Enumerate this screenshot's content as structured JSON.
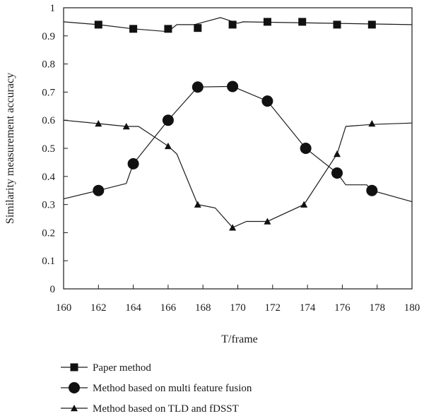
{
  "chart_data": {
    "type": "line",
    "xlabel": "T/frame",
    "ylabel": "Similarity measurement accuracy",
    "xlim": [
      160,
      180
    ],
    "ylim": [
      0,
      1
    ],
    "x_ticks": [
      "160",
      "162",
      "164",
      "166",
      "168",
      "170",
      "172",
      "174",
      "176",
      "178",
      "180"
    ],
    "y_ticks": [
      "0",
      "0.1",
      "0.2",
      "0.3",
      "0.4",
      "0.5",
      "0.6",
      "0.7",
      "0.8",
      "0.9",
      "1"
    ],
    "grid": false,
    "legend_position": "bottom",
    "series": [
      {
        "name": "Paper method",
        "marker": "square",
        "line": [
          [
            160,
            0.95
          ],
          [
            162,
            0.94
          ],
          [
            164,
            0.925
          ],
          [
            166,
            0.915
          ],
          [
            166.5,
            0.94
          ],
          [
            167.5,
            0.94
          ],
          [
            169,
            0.965
          ],
          [
            170,
            0.945
          ],
          [
            170.3,
            0.95
          ],
          [
            180,
            0.94
          ]
        ],
        "markers": [
          [
            162,
            0.94
          ],
          [
            164,
            0.925
          ],
          [
            166,
            0.925
          ],
          [
            167.7,
            0.928
          ],
          [
            169.7,
            0.94
          ],
          [
            171.7,
            0.95
          ],
          [
            173.7,
            0.95
          ],
          [
            175.7,
            0.94
          ],
          [
            177.7,
            0.94
          ]
        ]
      },
      {
        "name": "Method based on multi feature fusion",
        "marker": "circle",
        "line": [
          [
            160,
            0.32
          ],
          [
            162,
            0.35
          ],
          [
            163.6,
            0.375
          ],
          [
            164,
            0.445
          ],
          [
            166,
            0.6
          ],
          [
            167.7,
            0.718
          ],
          [
            169.7,
            0.72
          ],
          [
            171.7,
            0.668
          ],
          [
            173.9,
            0.5
          ],
          [
            175.7,
            0.412
          ],
          [
            176.2,
            0.37
          ],
          [
            177.4,
            0.37
          ],
          [
            177.7,
            0.35
          ],
          [
            180,
            0.31
          ]
        ],
        "markers": [
          [
            162,
            0.35
          ],
          [
            164,
            0.445
          ],
          [
            166,
            0.6
          ],
          [
            167.7,
            0.718
          ],
          [
            169.7,
            0.72
          ],
          [
            171.7,
            0.668
          ],
          [
            173.9,
            0.5
          ],
          [
            175.7,
            0.412
          ],
          [
            177.7,
            0.35
          ]
        ]
      },
      {
        "name": "Method based on TLD and fDSST",
        "marker": "triangle",
        "line": [
          [
            160,
            0.6
          ],
          [
            162,
            0.588
          ],
          [
            163.6,
            0.578
          ],
          [
            164.3,
            0.578
          ],
          [
            166,
            0.508
          ],
          [
            166.5,
            0.48
          ],
          [
            167.7,
            0.3
          ],
          [
            168.7,
            0.288
          ],
          [
            169.7,
            0.218
          ],
          [
            170.5,
            0.24
          ],
          [
            171.7,
            0.24
          ],
          [
            173.8,
            0.3
          ],
          [
            175.7,
            0.48
          ],
          [
            176.2,
            0.578
          ],
          [
            177.7,
            0.585
          ],
          [
            180,
            0.59
          ]
        ],
        "markers": [
          [
            162,
            0.588
          ],
          [
            163.6,
            0.578
          ],
          [
            166,
            0.508
          ],
          [
            167.7,
            0.3
          ],
          [
            169.7,
            0.218
          ],
          [
            171.7,
            0.24
          ],
          [
            173.8,
            0.3
          ],
          [
            175.7,
            0.48
          ],
          [
            177.7,
            0.588
          ]
        ]
      }
    ]
  }
}
